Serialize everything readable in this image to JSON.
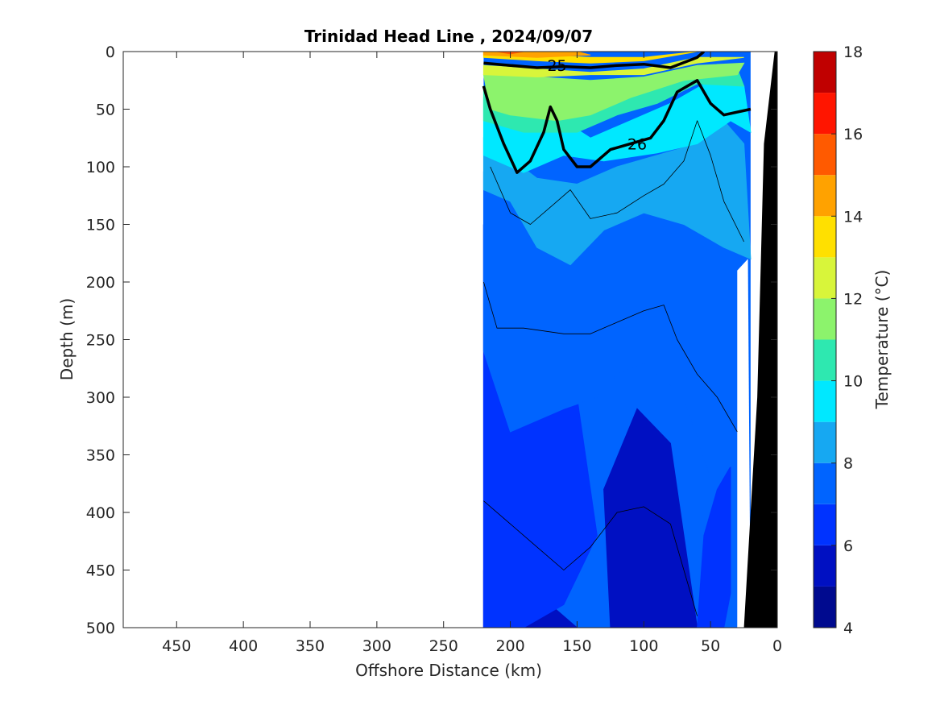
{
  "chart_data": {
    "type": "heatmap",
    "title": "Trinidad Head Line , 2024/09/07",
    "xlabel": "Offshore Distance (km)",
    "ylabel": "Depth (m)",
    "xlim": [
      490,
      0
    ],
    "ylim": [
      0,
      500
    ],
    "x_reversed": true,
    "y_reversed": true,
    "x_ticks": [
      450,
      400,
      350,
      300,
      250,
      200,
      150,
      100,
      50,
      0
    ],
    "y_ticks": [
      0,
      50,
      100,
      150,
      200,
      250,
      300,
      350,
      400,
      450,
      500
    ],
    "colorbar": {
      "label": "Temperature (°C)",
      "range": [
        4,
        18
      ],
      "ticks": [
        4,
        6,
        8,
        10,
        12,
        14,
        16,
        18
      ],
      "levels": [
        {
          "lo": 4,
          "hi": 5,
          "color": "#000a8f"
        },
        {
          "lo": 5,
          "hi": 6,
          "color": "#0010c2"
        },
        {
          "lo": 6,
          "hi": 7,
          "color": "#0033ff"
        },
        {
          "lo": 7,
          "hi": 8,
          "color": "#0064ff"
        },
        {
          "lo": 8,
          "hi": 9,
          "color": "#16a8f2"
        },
        {
          "lo": 9,
          "hi": 10,
          "color": "#00e8ff"
        },
        {
          "lo": 10,
          "hi": 11,
          "color": "#2ee8b0"
        },
        {
          "lo": 11,
          "hi": 12,
          "color": "#8cf36c"
        },
        {
          "lo": 12,
          "hi": 13,
          "color": "#d8f53a"
        },
        {
          "lo": 13,
          "hi": 14,
          "color": "#ffe000"
        },
        {
          "lo": 14,
          "hi": 15,
          "color": "#ffa200"
        },
        {
          "lo": 15,
          "hi": 16,
          "color": "#ff5a00"
        },
        {
          "lo": 16,
          "hi": 17,
          "color": "#ff1500"
        },
        {
          "lo": 17,
          "hi": 18,
          "color": "#c00000"
        }
      ]
    },
    "data_extent_km": [
      220,
      20
    ],
    "bathymetry_color": "#000000",
    "temperature_bands": [
      {
        "value": 4.5,
        "polygon": [
          [
            220,
            450
          ],
          [
            210,
            500
          ],
          [
            220,
            500
          ]
        ]
      },
      {
        "value": 5.5,
        "polygon": [
          [
            220,
            150
          ],
          [
            200,
            320
          ],
          [
            185,
            420
          ],
          [
            170,
            480
          ],
          [
            150,
            500
          ],
          [
            220,
            500
          ]
        ]
      },
      {
        "value": 5.5,
        "polygon": [
          [
            125,
            500
          ],
          [
            130,
            380
          ],
          [
            105,
            310
          ],
          [
            80,
            340
          ],
          [
            70,
            420
          ],
          [
            60,
            500
          ]
        ]
      },
      {
        "value": 6.5,
        "polygon": [
          [
            220,
            150
          ],
          [
            205,
            230
          ],
          [
            180,
            270
          ],
          [
            150,
            300
          ],
          [
            135,
            420
          ],
          [
            160,
            480
          ],
          [
            190,
            500
          ],
          [
            220,
            500
          ]
        ]
      },
      {
        "value": 6.5,
        "polygon": [
          [
            60,
            500
          ],
          [
            55,
            420
          ],
          [
            45,
            380
          ],
          [
            35,
            360
          ],
          [
            35,
            470
          ],
          [
            40,
            500
          ]
        ]
      },
      {
        "value": 7.5,
        "polygon": [
          [
            220,
            105
          ],
          [
            180,
            165
          ],
          [
            155,
            185
          ],
          [
            130,
            150
          ],
          [
            100,
            135
          ],
          [
            70,
            145
          ],
          [
            45,
            170
          ],
          [
            25,
            180
          ],
          [
            30,
            330
          ],
          [
            35,
            360
          ],
          [
            50,
            370
          ],
          [
            70,
            300
          ],
          [
            100,
            270
          ],
          [
            120,
            280
          ],
          [
            135,
            300
          ],
          [
            160,
            310
          ],
          [
            200,
            330
          ],
          [
            220,
            260
          ]
        ]
      },
      {
        "value": 8.5,
        "polygon": [
          [
            220,
            75
          ],
          [
            180,
            110
          ],
          [
            150,
            115
          ],
          [
            120,
            100
          ],
          [
            90,
            90
          ],
          [
            60,
            80
          ],
          [
            40,
            60
          ],
          [
            25,
            80
          ],
          [
            20,
            180
          ],
          [
            40,
            170
          ],
          [
            70,
            150
          ],
          [
            100,
            140
          ],
          [
            130,
            155
          ],
          [
            155,
            185
          ],
          [
            180,
            170
          ],
          [
            200,
            130
          ],
          [
            220,
            120
          ]
        ]
      },
      {
        "value": 9.5,
        "polygon": [
          [
            220,
            40
          ],
          [
            190,
            45
          ],
          [
            160,
            60
          ],
          [
            140,
            75
          ],
          [
            110,
            60
          ],
          [
            80,
            45
          ],
          [
            50,
            25
          ],
          [
            25,
            30
          ],
          [
            20,
            70
          ],
          [
            35,
            60
          ],
          [
            60,
            80
          ],
          [
            90,
            88
          ],
          [
            130,
            95
          ],
          [
            160,
            90
          ],
          [
            190,
            105
          ],
          [
            220,
            90
          ]
        ]
      },
      {
        "value": 10.5,
        "polygon": [
          [
            220,
            30
          ],
          [
            190,
            35
          ],
          [
            150,
            40
          ],
          [
            120,
            35
          ],
          [
            90,
            30
          ],
          [
            60,
            20
          ],
          [
            30,
            15
          ],
          [
            25,
            30
          ],
          [
            60,
            28
          ],
          [
            90,
            45
          ],
          [
            120,
            55
          ],
          [
            150,
            70
          ],
          [
            190,
            70
          ],
          [
            220,
            60
          ]
        ]
      },
      {
        "value": 11.5,
        "polygon": [
          [
            220,
            20
          ],
          [
            180,
            22
          ],
          [
            140,
            25
          ],
          [
            100,
            22
          ],
          [
            60,
            12
          ],
          [
            25,
            10
          ],
          [
            30,
            20
          ],
          [
            70,
            25
          ],
          [
            110,
            40
          ],
          [
            140,
            55
          ],
          [
            165,
            60
          ],
          [
            200,
            55
          ],
          [
            215,
            50
          ]
        ]
      },
      {
        "value": 12.5,
        "polygon": [
          [
            220,
            12
          ],
          [
            180,
            15
          ],
          [
            140,
            18
          ],
          [
            100,
            15
          ],
          [
            60,
            5
          ],
          [
            25,
            5
          ],
          [
            60,
            10
          ],
          [
            100,
            20
          ],
          [
            140,
            20
          ],
          [
            180,
            22
          ],
          [
            220,
            20
          ]
        ]
      },
      {
        "value": 13.5,
        "polygon": [
          [
            220,
            5
          ],
          [
            180,
            8
          ],
          [
            140,
            10
          ],
          [
            100,
            8
          ],
          [
            70,
            2
          ],
          [
            60,
            0
          ],
          [
            100,
            5
          ],
          [
            140,
            5
          ],
          [
            180,
            3
          ],
          [
            220,
            0
          ]
        ]
      },
      {
        "value": 14.5,
        "polygon": [
          [
            220,
            0
          ],
          [
            180,
            0
          ],
          [
            150,
            0
          ],
          [
            140,
            3
          ],
          [
            180,
            5
          ],
          [
            220,
            3
          ]
        ]
      },
      {
        "value": 15.5,
        "polygon": [
          [
            210,
            0
          ],
          [
            190,
            0
          ],
          [
            200,
            2
          ]
        ]
      }
    ],
    "density_contours": [
      {
        "value": 25,
        "label": "25",
        "label_at": [
          165,
          12
        ],
        "bold": true,
        "points": [
          [
            220,
            10
          ],
          [
            200,
            12
          ],
          [
            180,
            14
          ],
          [
            160,
            13
          ],
          [
            140,
            14
          ],
          [
            120,
            12
          ],
          [
            100,
            11
          ],
          [
            80,
            14
          ],
          [
            60,
            5
          ],
          [
            55,
            0
          ]
        ]
      },
      {
        "value": 26,
        "label": "26",
        "label_at": [
          105,
          80
        ],
        "bold": true,
        "points": [
          [
            220,
            30
          ],
          [
            215,
            50
          ],
          [
            205,
            80
          ],
          [
            195,
            105
          ],
          [
            185,
            95
          ],
          [
            175,
            70
          ],
          [
            170,
            48
          ],
          [
            165,
            60
          ],
          [
            160,
            85
          ],
          [
            150,
            100
          ],
          [
            140,
            100
          ],
          [
            125,
            85
          ],
          [
            110,
            80
          ],
          [
            95,
            75
          ],
          [
            85,
            60
          ],
          [
            75,
            35
          ],
          [
            60,
            25
          ],
          [
            50,
            45
          ],
          [
            40,
            55
          ],
          [
            20,
            50
          ]
        ]
      },
      {
        "value": 26.5,
        "label": "",
        "label_at": null,
        "bold": false,
        "points": [
          [
            215,
            100
          ],
          [
            200,
            140
          ],
          [
            185,
            150
          ],
          [
            170,
            135
          ],
          [
            155,
            120
          ],
          [
            140,
            145
          ],
          [
            120,
            140
          ],
          [
            100,
            125
          ],
          [
            85,
            115
          ],
          [
            70,
            95
          ],
          [
            60,
            60
          ],
          [
            50,
            90
          ],
          [
            40,
            130
          ],
          [
            25,
            165
          ]
        ]
      },
      {
        "value": 26.6,
        "label": "",
        "label_at": null,
        "bold": false,
        "points": [
          [
            220,
            200
          ],
          [
            210,
            240
          ],
          [
            190,
            240
          ],
          [
            160,
            245
          ],
          [
            140,
            245
          ],
          [
            120,
            235
          ],
          [
            100,
            225
          ],
          [
            85,
            220
          ],
          [
            75,
            250
          ],
          [
            60,
            280
          ],
          [
            45,
            300
          ],
          [
            30,
            330
          ]
        ]
      },
      {
        "value": 26.7,
        "label": "",
        "label_at": null,
        "bold": false,
        "points": [
          [
            220,
            390
          ],
          [
            200,
            410
          ],
          [
            180,
            430
          ],
          [
            160,
            450
          ],
          [
            140,
            430
          ],
          [
            120,
            400
          ],
          [
            100,
            395
          ],
          [
            80,
            410
          ],
          [
            70,
            450
          ],
          [
            60,
            490
          ]
        ]
      }
    ]
  }
}
